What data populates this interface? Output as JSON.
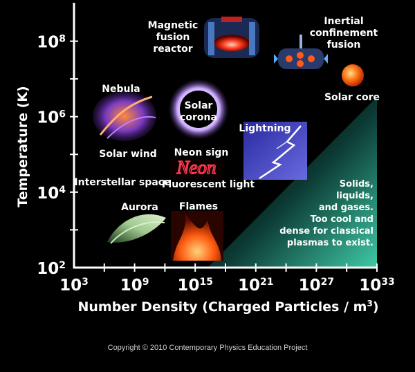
{
  "chart_data": {
    "type": "scatter",
    "xlabel": "Number Density (Charged Particles / m",
    "xlabel_sup": "3",
    "xlabel_end": ")",
    "ylabel": "Temperature (K)",
    "x_scale": "log",
    "y_scale": "log",
    "xlim": [
      1000.0,
      1e+33
    ],
    "ylim": [
      100.0,
      1000000000.0
    ],
    "x_ticks": [
      {
        "base": "10",
        "exp": "3",
        "value": 1000.0
      },
      {
        "base": "10",
        "exp": "9",
        "value": 1000000000.0
      },
      {
        "base": "10",
        "exp": "15",
        "value": 1000000000000000.0
      },
      {
        "base": "10",
        "exp": "21",
        "value": 1e+21
      },
      {
        "base": "10",
        "exp": "27",
        "value": 1e+27
      },
      {
        "base": "10",
        "exp": "33",
        "value": 1e+33
      }
    ],
    "y_ticks": [
      {
        "base": "10",
        "exp": "2",
        "value": 100.0
      },
      {
        "base": "10",
        "exp": "4",
        "value": 10000.0
      },
      {
        "base": "10",
        "exp": "6",
        "value": 1000000.0
      },
      {
        "base": "10",
        "exp": "8",
        "value": 100000000.0
      }
    ],
    "points": [
      {
        "id": "magnetic-fusion-reactor",
        "lines": [
          "Magnetic",
          "fusion",
          "reactor"
        ],
        "x": 1e+19,
        "y": 100000000.0
      },
      {
        "id": "inertial-confinement-fusion",
        "lines": [
          "Inertial",
          "confinement",
          "fusion"
        ],
        "x": 1e+29,
        "y": 100000000.0
      },
      {
        "id": "solar-core",
        "lines": [
          "Solar core"
        ],
        "x": 1e+31,
        "y": 10000000.0
      },
      {
        "id": "nebula",
        "lines": [
          "Nebula"
        ],
        "x": 10000000000.0,
        "y": 1000000.0
      },
      {
        "id": "solar-corona",
        "lines": [
          "Solar",
          "corona"
        ],
        "x": 1000000000000000.0,
        "y": 1000000.0
      },
      {
        "id": "solar-wind",
        "lines": [
          "Solar wind"
        ],
        "x": 10000000.0,
        "y": 100000.0
      },
      {
        "id": "lightning",
        "lines": [
          "Lightning"
        ],
        "x": 1e+24,
        "y": 10000.0
      },
      {
        "id": "neon-sign",
        "lines": [
          "Neon sign"
        ],
        "x": 1e+16,
        "y": 10000.0
      },
      {
        "id": "neon-tube",
        "lines": [
          "Neon"
        ],
        "x": 1e+16,
        "y": 10000.0
      },
      {
        "id": "fluorescent-light",
        "lines": [
          "Fluorescent light"
        ],
        "x": 1e+17,
        "y": 10000.0
      },
      {
        "id": "interstellar-space",
        "lines": [
          "Interstellar space"
        ],
        "x": 1000000.0,
        "y": 10000.0
      },
      {
        "id": "aurora",
        "lines": [
          "Aurora"
        ],
        "x": 10000000000.0,
        "y": 1000.0
      },
      {
        "id": "flames",
        "lines": [
          "Flames"
        ],
        "x": 1e+16,
        "y": 1000.0
      }
    ],
    "non_plasma_region": {
      "lines": [
        "Solids,",
        "liquids,",
        "and gases.",
        "Too cool and",
        "dense for classical",
        "plasmas to exist."
      ]
    },
    "colors": {
      "background": "#000000",
      "axis": "#ffffff",
      "non_plasma_fill": "#3fc9a6",
      "text": "#ffffff"
    }
  },
  "footer": {
    "copyright": "Copyright © 2010 Contemporary Physics Education Project"
  }
}
